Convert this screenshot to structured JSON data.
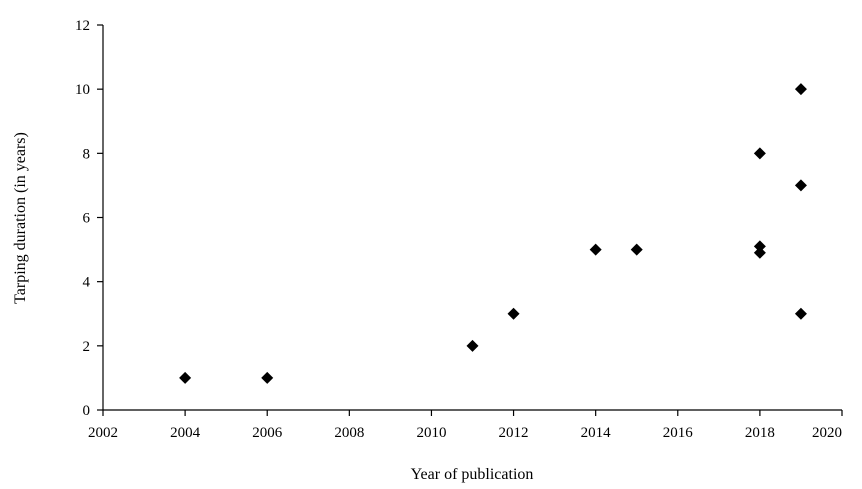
{
  "chart_data": {
    "type": "scatter",
    "title": "",
    "xlabel": "Year of publication",
    "ylabel": "Tarping duration (in years)",
    "xlim": [
      2002,
      2020
    ],
    "ylim": [
      0,
      12
    ],
    "xticks": [
      "2002",
      "2004",
      "2006",
      "2008",
      "2010",
      "2012",
      "2014",
      "2016",
      "2018",
      "2020"
    ],
    "yticks": [
      "0",
      "2",
      "4",
      "6",
      "8",
      "10",
      "12"
    ],
    "grid": false,
    "legend": false,
    "marker": "diamond",
    "marker_color": "#000000",
    "points": [
      {
        "x": 2004,
        "y": 1
      },
      {
        "x": 2006,
        "y": 1
      },
      {
        "x": 2011,
        "y": 2
      },
      {
        "x": 2012,
        "y": 3
      },
      {
        "x": 2014,
        "y": 5
      },
      {
        "x": 2015,
        "y": 5
      },
      {
        "x": 2018,
        "y": 8
      },
      {
        "x": 2018,
        "y": 5.1
      },
      {
        "x": 2018,
        "y": 4.9
      },
      {
        "x": 2019,
        "y": 10
      },
      {
        "x": 2019,
        "y": 7
      },
      {
        "x": 2019,
        "y": 3
      }
    ]
  }
}
